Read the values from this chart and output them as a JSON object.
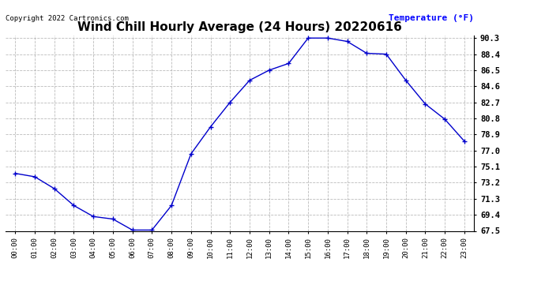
{
  "title": "Wind Chill Hourly Average (24 Hours) 20220616",
  "ylabel_text": "Temperature (°F)",
  "copyright_text": "Copyright 2022 Cartronics.com",
  "hours": [
    "00:00",
    "01:00",
    "02:00",
    "03:00",
    "04:00",
    "05:00",
    "06:00",
    "07:00",
    "08:00",
    "09:00",
    "10:00",
    "11:00",
    "12:00",
    "13:00",
    "14:00",
    "15:00",
    "16:00",
    "17:00",
    "18:00",
    "19:00",
    "20:00",
    "21:00",
    "22:00",
    "23:00"
  ],
  "values": [
    74.3,
    73.9,
    72.5,
    70.5,
    69.2,
    68.9,
    67.6,
    67.6,
    70.5,
    76.6,
    79.8,
    82.7,
    85.3,
    86.5,
    87.3,
    90.3,
    90.3,
    89.9,
    88.5,
    88.4,
    85.3,
    82.5,
    80.7,
    78.1
  ],
  "line_color": "#0000cc",
  "marker": "+",
  "marker_size": 4,
  "ylim_min": 67.5,
  "ylim_max": 90.3,
  "ytick_values": [
    67.5,
    69.4,
    71.3,
    73.2,
    75.1,
    77.0,
    78.9,
    80.8,
    82.7,
    84.6,
    86.5,
    88.4,
    90.3
  ],
  "title_fontsize": 11,
  "ylabel_color": "#0000ff",
  "grid_color": "#aaaaaa",
  "background_color": "#ffffff",
  "fig_bg_color": "#ffffff"
}
